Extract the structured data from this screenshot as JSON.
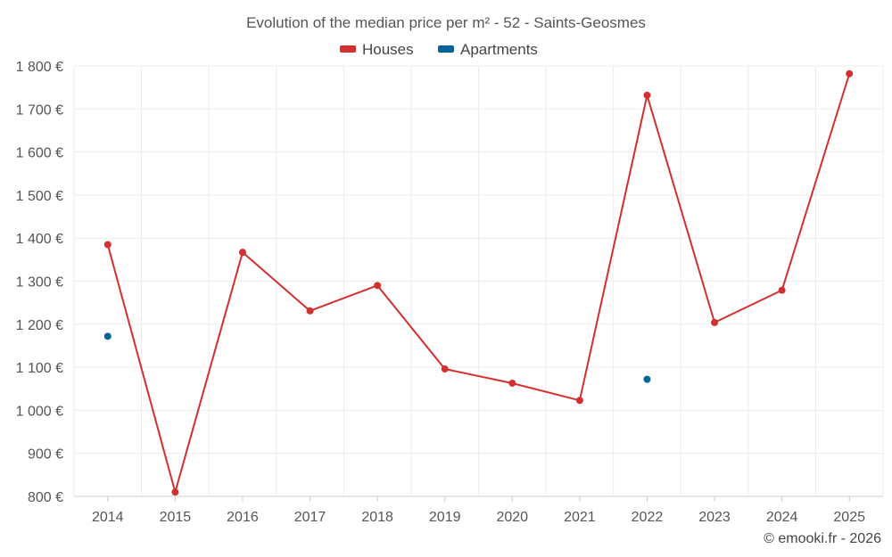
{
  "chart_data": {
    "type": "line",
    "title": "Evolution of the median price per m² - 52 - Saints-Geosmes",
    "categories": [
      "2014",
      "2015",
      "2016",
      "2017",
      "2018",
      "2019",
      "2020",
      "2021",
      "2022",
      "2023",
      "2024",
      "2025"
    ],
    "ylim": [
      800,
      1800
    ],
    "yticks": [
      800,
      900,
      1000,
      1100,
      1200,
      1300,
      1400,
      1500,
      1600,
      1700,
      1800
    ],
    "ytick_labels": [
      "800 €",
      "900 €",
      "1 000 €",
      "1 100 €",
      "1 200 €",
      "1 300 €",
      "1 400 €",
      "1 500 €",
      "1 600 €",
      "1 700 €",
      "1 800 €"
    ],
    "grid": true,
    "legend_position": "top-center",
    "series": [
      {
        "name": "Houses",
        "color": "#d32f2f",
        "values": [
          1385,
          810,
          1367,
          1231,
          1290,
          1096,
          1063,
          1023,
          1732,
          1204,
          1279,
          1782
        ]
      },
      {
        "name": "Apartments",
        "color": "#00639a",
        "values": [
          1172,
          null,
          null,
          null,
          null,
          null,
          null,
          null,
          1072,
          null,
          null,
          null
        ]
      }
    ]
  },
  "credit": "© emooki.fr - 2026"
}
